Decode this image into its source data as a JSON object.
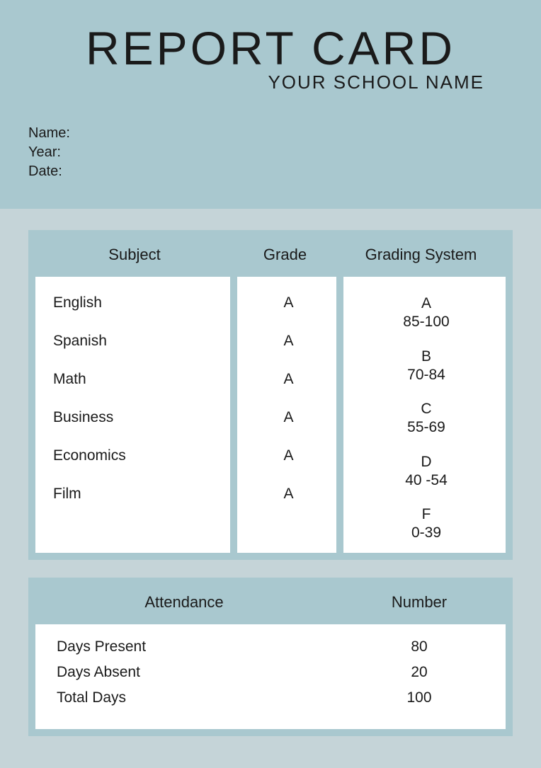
{
  "colors": {
    "header_bg": "#a9c8cf",
    "page_bg": "#c5d4d8",
    "panel_bg": "#ffffff",
    "text": "#1a1a1a"
  },
  "header": {
    "title": "REPORT CARD",
    "subtitle": "YOUR SCHOOL NAME",
    "info": {
      "name_label": "Name:",
      "year_label": "Year:",
      "date_label": "Date:"
    }
  },
  "grades_card": {
    "columns": {
      "subject": "Subject",
      "grade": "Grade",
      "system": "Grading System"
    },
    "subjects": [
      {
        "name": "English",
        "grade": "A"
      },
      {
        "name": "Spanish",
        "grade": "A"
      },
      {
        "name": "Math",
        "grade": "A"
      },
      {
        "name": "Business",
        "grade": "A"
      },
      {
        "name": "Economics",
        "grade": "A"
      },
      {
        "name": "Film",
        "grade": "A"
      }
    ],
    "grading_system": [
      {
        "letter": "A",
        "range": "85-100"
      },
      {
        "letter": "B",
        "range": "70-84"
      },
      {
        "letter": "C",
        "range": "55-69"
      },
      {
        "letter": "D",
        "range": "40 -54"
      },
      {
        "letter": "F",
        "range": "0-39"
      }
    ]
  },
  "attendance_card": {
    "columns": {
      "attendance": "Attendance",
      "number": "Number"
    },
    "rows": [
      {
        "label": "Days Present",
        "number": "80"
      },
      {
        "label": "Days Absent",
        "number": "20"
      },
      {
        "label": "Total Days",
        "number": "100"
      }
    ]
  }
}
